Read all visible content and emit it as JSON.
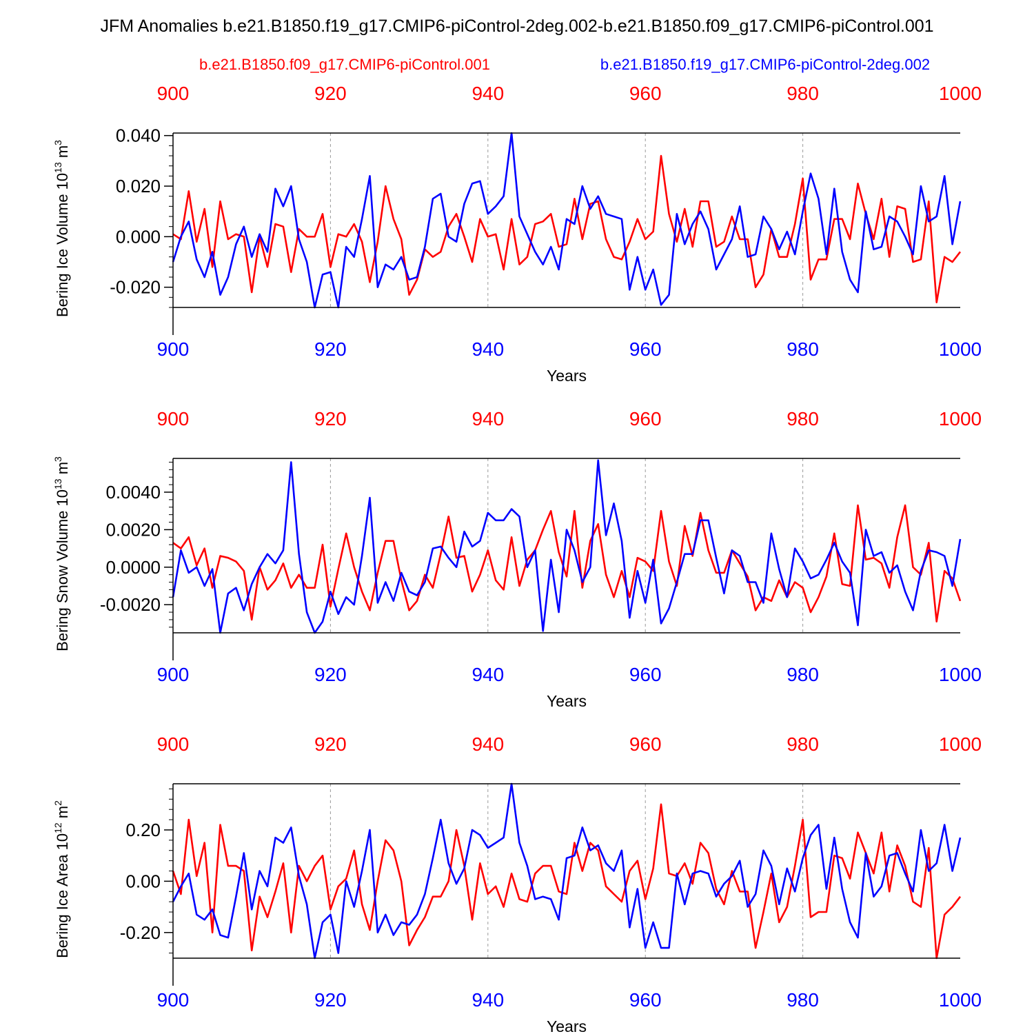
{
  "title": "JFM Anomalies b.e21.B1850.f19_g17.CMIP6-piControl-2deg.002-b.e21.B1850.f09_g17.CMIP6-piControl.001",
  "legend": {
    "red": "b.e21.B1850.f09_g17.CMIP6-piControl.001",
    "blue": "b.e21.B1850.f19_g17.CMIP6-piControl-2deg.002"
  },
  "colors": {
    "red": "#ff0000",
    "blue": "#0000ff",
    "axis": "#000000",
    "grid": "#999999"
  },
  "chart_data": [
    {
      "type": "line",
      "title": "",
      "ylabel_main": "Bering Ice Volume 10",
      "ylabel_sup": "13",
      "ylabel_unit": " m",
      "ylabel_unit_sup": "3",
      "xlabel": "Years",
      "xlim": [
        900,
        1000
      ],
      "ylim": [
        -0.028,
        0.041
      ],
      "xticks": [
        900,
        920,
        940,
        960,
        980,
        1000
      ],
      "yticks": [
        -0.02,
        0.0,
        0.02,
        0.04
      ],
      "ytick_labels": [
        "-0.020",
        "0.000",
        "0.020",
        "0.040"
      ],
      "ytick_minor_step": 0.004,
      "grid_x": [
        920,
        940,
        960,
        980
      ],
      "series": [
        {
          "name": "b.e21.B1850.f09_g17.CMIP6-piControl.001",
          "color": "red",
          "x_start": 900,
          "values": [
            0.001,
            -0.001,
            0.018,
            -0.002,
            0.011,
            -0.012,
            0.014,
            -0.001,
            0.001,
            0.0,
            -0.022,
            0.0,
            -0.012,
            0.005,
            0.004,
            -0.014,
            0.003,
            0.0,
            0.0,
            0.009,
            -0.012,
            0.001,
            0.0,
            0.005,
            -0.002,
            -0.018,
            -0.002,
            0.02,
            0.007,
            -0.001,
            -0.023,
            -0.017,
            -0.005,
            -0.008,
            -0.006,
            0.004,
            0.009,
            0.0,
            -0.01,
            0.007,
            0.0,
            0.001,
            -0.013,
            0.007,
            -0.011,
            -0.008,
            0.005,
            0.006,
            0.009,
            -0.004,
            -0.003,
            0.015,
            -0.001,
            0.013,
            0.014,
            -0.001,
            -0.008,
            -0.009,
            -0.002,
            0.007,
            -0.001,
            0.002,
            0.032,
            0.009,
            -0.002,
            0.011,
            -0.004,
            0.014,
            0.014,
            -0.004,
            -0.002,
            0.008,
            -0.001,
            -0.001,
            -0.02,
            -0.015,
            0.003,
            -0.008,
            -0.008,
            0.005,
            0.023,
            -0.017,
            -0.009,
            -0.009,
            0.007,
            0.007,
            -0.001,
            0.021,
            0.009,
            -0.001,
            0.015,
            -0.008,
            0.012,
            0.011,
            -0.01,
            -0.009,
            0.014,
            -0.026,
            -0.008,
            -0.01,
            -0.006
          ]
        },
        {
          "name": "b.e21.B1850.f19_g17.CMIP6-piControl-2deg.002",
          "color": "blue",
          "x_start": 900,
          "values": [
            -0.01,
            0.0,
            0.006,
            -0.009,
            -0.016,
            -0.006,
            -0.023,
            -0.016,
            -0.003,
            0.004,
            -0.008,
            0.001,
            -0.006,
            0.019,
            0.012,
            0.02,
            -0.001,
            -0.01,
            -0.028,
            -0.015,
            -0.014,
            -0.028,
            -0.004,
            -0.008,
            0.007,
            0.024,
            -0.02,
            -0.011,
            -0.013,
            -0.008,
            -0.017,
            -0.016,
            -0.004,
            0.015,
            0.017,
            0.0,
            -0.002,
            0.013,
            0.021,
            0.022,
            0.009,
            0.012,
            0.016,
            0.041,
            0.008,
            0.001,
            -0.006,
            -0.011,
            -0.004,
            -0.013,
            0.007,
            0.005,
            0.02,
            0.011,
            0.016,
            0.009,
            0.008,
            0.007,
            -0.021,
            -0.008,
            -0.021,
            -0.013,
            -0.027,
            -0.023,
            0.009,
            -0.003,
            0.005,
            0.01,
            0.003,
            -0.013,
            -0.007,
            -0.001,
            0.012,
            -0.008,
            -0.007,
            0.008,
            0.003,
            -0.005,
            0.002,
            -0.007,
            0.01,
            0.025,
            0.015,
            -0.007,
            0.019,
            -0.006,
            -0.017,
            -0.022,
            0.01,
            -0.005,
            -0.004,
            0.008,
            0.006,
            0.0,
            -0.007,
            0.02,
            0.006,
            0.008,
            0.024,
            -0.003,
            0.014
          ]
        }
      ]
    },
    {
      "type": "line",
      "title": "",
      "ylabel_main": "Bering Snow Volume 10",
      "ylabel_sup": "13",
      "ylabel_unit": " m",
      "ylabel_unit_sup": "3",
      "xlabel": "Years",
      "xlim": [
        900,
        1000
      ],
      "ylim": [
        -0.0035,
        0.0058
      ],
      "xticks": [
        900,
        920,
        940,
        960,
        980,
        1000
      ],
      "yticks": [
        -0.002,
        0.0,
        0.002,
        0.004
      ],
      "ytick_labels": [
        "-0.0020",
        "0.0000",
        "0.0020",
        "0.0040"
      ],
      "ytick_minor_step": 0.0004,
      "grid_x": [
        920,
        940,
        960,
        980
      ],
      "series": [
        {
          "name": "b.e21.B1850.f09_g17.CMIP6-piControl.001",
          "color": "red",
          "x_start": 900,
          "values": [
            0.0013,
            0.001,
            0.0016,
            0.0001,
            0.001,
            -0.0011,
            0.0006,
            0.0005,
            0.0003,
            -0.0002,
            -0.0028,
            0.0,
            -0.0012,
            -0.0007,
            0.0002,
            -0.0011,
            -0.0004,
            -0.0011,
            -0.0011,
            0.0012,
            -0.0021,
            -0.0001,
            0.0018,
            0.0,
            -0.0013,
            -0.0023,
            -0.0003,
            0.0014,
            0.0014,
            -0.0007,
            -0.0023,
            -0.0018,
            -0.0004,
            -0.0011,
            0.0007,
            0.0027,
            0.0005,
            0.0006,
            -0.0013,
            -0.0004,
            0.0009,
            -0.0007,
            -0.0012,
            0.0016,
            -0.001,
            0.0004,
            0.0009,
            0.002,
            0.003,
            0.0008,
            -0.0005,
            0.003,
            -0.0011,
            0.0014,
            0.0023,
            -0.0004,
            -0.0016,
            -0.0002,
            -0.0016,
            0.0005,
            0.0003,
            -0.0002,
            0.003,
            0.0003,
            -0.001,
            0.0022,
            0.0006,
            0.0029,
            0.0009,
            -0.0003,
            -0.0003,
            0.0009,
            0.0002,
            -0.0005,
            -0.0023,
            -0.0016,
            -0.0018,
            -0.0007,
            -0.0016,
            -0.0008,
            -0.0011,
            -0.0024,
            -0.0016,
            -0.0005,
            0.0018,
            -0.0009,
            -0.001,
            0.0033,
            0.0004,
            0.0005,
            0.0002,
            -0.0011,
            0.0016,
            0.0033,
            0.0,
            -0.0004,
            0.0013,
            -0.0029,
            -0.0002,
            -0.0006,
            -0.0018
          ]
        },
        {
          "name": "b.e21.B1850.f19_g17.CMIP6-piControl-2deg.002",
          "color": "blue",
          "x_start": 900,
          "values": [
            -0.0016,
            0.0009,
            -0.0003,
            0.0,
            -0.001,
            -0.0001,
            -0.0035,
            -0.0014,
            -0.0011,
            -0.0023,
            -0.0009,
            0.0,
            0.0007,
            0.0002,
            0.0009,
            0.0056,
            0.0007,
            -0.0024,
            -0.0035,
            -0.0029,
            -0.0013,
            -0.0025,
            -0.0016,
            -0.002,
            0.0006,
            0.0037,
            -0.0019,
            -0.0008,
            -0.0018,
            -0.0003,
            -0.0013,
            -0.0015,
            -0.0008,
            0.001,
            0.0011,
            0.0005,
            0.0,
            0.0019,
            0.0011,
            0.0014,
            0.0029,
            0.0025,
            0.0025,
            0.0031,
            0.0027,
            0.0,
            0.0009,
            -0.0034,
            0.0004,
            -0.0024,
            0.002,
            0.0009,
            -0.0008,
            0.0,
            0.0057,
            0.0017,
            0.0034,
            0.0014,
            -0.0027,
            -0.0002,
            -0.0019,
            0.0004,
            -0.003,
            -0.0022,
            -0.0008,
            0.0007,
            0.0007,
            0.0025,
            0.0025,
            0.0005,
            -0.0014,
            0.0009,
            0.0006,
            -0.0008,
            -0.0008,
            -0.0019,
            0.0018,
            -0.0001,
            -0.0016,
            0.001,
            0.0003,
            -0.0006,
            -0.0004,
            0.0004,
            0.0013,
            0.0003,
            -0.0003,
            -0.0031,
            0.002,
            0.0006,
            0.0008,
            -0.0003,
            0.0001,
            -0.0013,
            -0.0023,
            -0.0002,
            0.0009,
            0.0008,
            0.0006,
            -0.001,
            0.0015
          ]
        }
      ]
    },
    {
      "type": "line",
      "title": "",
      "ylabel_main": "Bering Ice Area 10",
      "ylabel_sup": "12",
      "ylabel_unit": " m",
      "ylabel_unit_sup": "2",
      "xlabel": "Years",
      "xlim": [
        900,
        1000
      ],
      "ylim": [
        -0.3,
        0.38
      ],
      "xticks": [
        900,
        920,
        940,
        960,
        980,
        1000
      ],
      "yticks": [
        -0.2,
        0.0,
        0.2
      ],
      "ytick_labels": [
        "-0.20",
        "0.00",
        "0.20"
      ],
      "ytick_minor_step": 0.04,
      "grid_x": [
        920,
        940,
        960,
        980
      ],
      "series": [
        {
          "name": "b.e21.B1850.f09_g17.CMIP6-piControl.001",
          "color": "red",
          "x_start": 900,
          "values": [
            0.04,
            -0.05,
            0.24,
            0.02,
            0.15,
            -0.2,
            0.22,
            0.06,
            0.06,
            0.04,
            -0.27,
            -0.06,
            -0.14,
            -0.04,
            0.07,
            -0.2,
            0.06,
            0.0,
            0.06,
            0.1,
            -0.11,
            -0.02,
            0.01,
            0.12,
            -0.09,
            -0.19,
            0.0,
            0.16,
            0.12,
            0.0,
            -0.25,
            -0.19,
            -0.14,
            -0.06,
            -0.06,
            0.0,
            0.2,
            0.06,
            -0.15,
            0.07,
            -0.05,
            -0.02,
            -0.1,
            0.03,
            -0.07,
            -0.08,
            0.03,
            0.06,
            0.06,
            -0.04,
            -0.05,
            0.15,
            0.04,
            0.15,
            0.12,
            -0.02,
            -0.05,
            -0.08,
            0.04,
            0.08,
            -0.07,
            0.05,
            0.3,
            0.03,
            0.02,
            0.07,
            -0.01,
            0.15,
            0.11,
            -0.03,
            -0.09,
            0.04,
            -0.04,
            -0.04,
            -0.26,
            -0.12,
            0.03,
            -0.16,
            -0.1,
            0.06,
            0.24,
            -0.14,
            -0.12,
            -0.12,
            0.1,
            0.09,
            0.01,
            0.19,
            0.11,
            0.03,
            0.19,
            -0.04,
            0.14,
            0.06,
            -0.08,
            -0.1,
            0.13,
            -0.3,
            -0.13,
            -0.1,
            -0.06
          ]
        },
        {
          "name": "b.e21.B1850.f19_g17.CMIP6-piControl-2deg.002",
          "color": "blue",
          "x_start": 900,
          "values": [
            -0.08,
            -0.02,
            0.03,
            -0.13,
            -0.15,
            -0.11,
            -0.21,
            -0.22,
            -0.06,
            0.11,
            -0.11,
            0.04,
            -0.02,
            0.17,
            0.15,
            0.21,
            0.02,
            -0.09,
            -0.3,
            -0.16,
            -0.13,
            -0.28,
            0.0,
            -0.1,
            0.04,
            0.2,
            -0.2,
            -0.13,
            -0.21,
            -0.16,
            -0.17,
            -0.13,
            -0.05,
            0.09,
            0.24,
            0.07,
            -0.01,
            0.05,
            0.2,
            0.18,
            0.13,
            0.15,
            0.17,
            0.38,
            0.15,
            0.06,
            -0.07,
            -0.06,
            -0.07,
            -0.15,
            0.09,
            0.1,
            0.21,
            0.12,
            0.14,
            0.07,
            0.04,
            0.12,
            -0.18,
            -0.03,
            -0.26,
            -0.16,
            -0.26,
            -0.26,
            0.03,
            -0.09,
            0.03,
            0.04,
            0.03,
            -0.06,
            -0.01,
            0.02,
            0.08,
            -0.1,
            -0.05,
            0.12,
            0.06,
            -0.09,
            0.05,
            -0.04,
            0.09,
            0.18,
            0.22,
            -0.03,
            0.17,
            -0.03,
            -0.16,
            -0.22,
            0.11,
            -0.06,
            -0.02,
            0.1,
            0.11,
            0.03,
            -0.04,
            0.2,
            0.04,
            0.07,
            0.22,
            0.04,
            0.17
          ]
        }
      ]
    }
  ]
}
